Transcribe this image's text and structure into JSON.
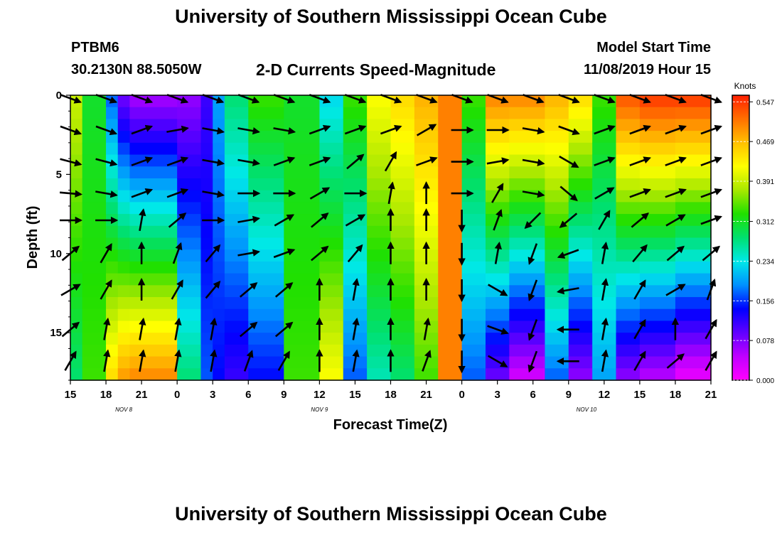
{
  "header": {
    "title": "University of Southern Mississippi Ocean Cube",
    "station_id": "PTBM6",
    "station_coords": "30.2130N 88.5050W",
    "subtitle": "2-D Currents Speed-Magnitude",
    "model_start_label": "Model Start Time",
    "model_start_value": "11/08/2019 Hour 15"
  },
  "footer": {
    "title": "University of Southern Mississippi Ocean Cube"
  },
  "colors": {
    "scale": [
      "#ff00ff",
      "#c000ff",
      "#6000ff",
      "#0000ff",
      "#0090ff",
      "#00e8e8",
      "#00e070",
      "#20e000",
      "#a8e800",
      "#ffff00",
      "#ffc000",
      "#ff7000",
      "#ff2000"
    ],
    "arrow": "#000000"
  },
  "chart_data": {
    "type": "heatmap",
    "title": "2-D Currents Speed-Magnitude",
    "xlabel": "Forecast Time(Z)",
    "ylabel": "Depth (ft)",
    "xlim": [
      0,
      54
    ],
    "ylim": [
      0,
      18
    ],
    "x_ticks": [
      {
        "x": 0,
        "label": "15"
      },
      {
        "x": 3,
        "label": "18"
      },
      {
        "x": 6,
        "label": "21"
      },
      {
        "x": 9,
        "label": "0"
      },
      {
        "x": 12,
        "label": "3"
      },
      {
        "x": 15,
        "label": "6"
      },
      {
        "x": 18,
        "label": "9"
      },
      {
        "x": 21,
        "label": "12"
      },
      {
        "x": 24,
        "label": "15"
      },
      {
        "x": 27,
        "label": "18"
      },
      {
        "x": 30,
        "label": "21"
      },
      {
        "x": 33,
        "label": "0"
      },
      {
        "x": 36,
        "label": "3"
      },
      {
        "x": 39,
        "label": "6"
      },
      {
        "x": 42,
        "label": "9"
      },
      {
        "x": 45,
        "label": "12"
      },
      {
        "x": 48,
        "label": "15"
      },
      {
        "x": 51,
        "label": "18"
      },
      {
        "x": 54,
        "label": "21"
      }
    ],
    "date_labels": [
      {
        "x": 4.5,
        "label": "NOV 8"
      },
      {
        "x": 21,
        "label": "NOV 9"
      },
      {
        "x": 43.5,
        "label": "NOV 10"
      }
    ],
    "y_ticks": [
      {
        "y": 0,
        "label": "0"
      },
      {
        "y": 5,
        "label": "5"
      },
      {
        "y": 10,
        "label": "10"
      },
      {
        "y": 15,
        "label": "15"
      }
    ],
    "colorbar": {
      "title": "Knots",
      "min": 0.0,
      "max": 0.56,
      "tick_labels": [
        "0.000",
        "0.078",
        "0.156",
        "0.234",
        "0.312",
        "0.391",
        "0.469",
        "0.547"
      ]
    },
    "arrow_times": [
      0,
      3,
      6,
      9,
      12,
      15,
      18,
      21,
      24,
      27,
      30,
      33,
      36,
      39,
      42,
      45,
      48,
      51,
      54
    ],
    "arrow_depths": [
      0.2,
      2.2,
      4.2,
      6.2,
      7.9,
      10,
      12.3,
      14.8,
      16.8
    ],
    "arrow_directions_deg": [
      [
        20,
        20,
        20,
        20,
        20,
        20,
        20,
        20,
        20,
        20,
        20,
        20,
        20,
        20,
        20,
        20,
        20,
        20,
        20
      ],
      [
        20,
        20,
        -20,
        -10,
        10,
        10,
        10,
        -20,
        -20,
        -20,
        -30,
        0,
        0,
        10,
        20,
        -20,
        -20,
        -20,
        -20
      ],
      [
        15,
        15,
        -20,
        -20,
        10,
        10,
        -20,
        -20,
        -40,
        -60,
        -20,
        0,
        -10,
        10,
        30,
        -20,
        -20,
        -20,
        -20
      ],
      [
        5,
        10,
        -20,
        -20,
        10,
        0,
        0,
        -30,
        0,
        -80,
        -90,
        0,
        -60,
        10,
        40,
        -30,
        -20,
        -20,
        -20
      ],
      [
        0,
        0,
        -80,
        -40,
        0,
        -10,
        -30,
        -40,
        -30,
        -90,
        -90,
        90,
        -70,
        135,
        140,
        -60,
        -40,
        -30,
        -20
      ],
      [
        -40,
        -60,
        -90,
        -70,
        -50,
        -10,
        -20,
        -40,
        -50,
        -90,
        -90,
        90,
        -80,
        110,
        160,
        -80,
        -50,
        -40,
        -40
      ],
      [
        -30,
        -60,
        -90,
        -60,
        -50,
        -40,
        -40,
        -90,
        -80,
        -90,
        -90,
        90,
        30,
        110,
        170,
        -80,
        -60,
        -30,
        -70
      ],
      [
        -40,
        -80,
        -80,
        -80,
        -80,
        -40,
        -40,
        -90,
        -80,
        -90,
        -80,
        90,
        20,
        110,
        180,
        -80,
        -60,
        -90,
        -60
      ],
      [
        -60,
        -80,
        -80,
        -80,
        -80,
        -70,
        -60,
        -90,
        -80,
        -90,
        -70,
        90,
        30,
        110,
        180,
        -80,
        -60,
        -40,
        -60
      ]
    ],
    "bands": [
      {
        "x0": 0,
        "x1": 1,
        "top": 0.7,
        "bottom": 0.5
      },
      {
        "x0": 1,
        "x1": 3,
        "top": 0.55,
        "bottom": 0.6
      },
      {
        "x0": 3,
        "x1": 4,
        "top": 0.3,
        "bottom": 0.8
      },
      {
        "x0": 4,
        "x1": 5,
        "top": 0.15,
        "bottom": 0.88
      },
      {
        "x0": 5,
        "x1": 9,
        "top": 0.1,
        "bottom": 0.9
      },
      {
        "x0": 9,
        "x1": 11,
        "top": 0.12,
        "bottom": 0.5
      },
      {
        "x0": 11,
        "x1": 12,
        "top": 0.2,
        "bottom": 0.3
      },
      {
        "x0": 12,
        "x1": 13,
        "top": 0.35,
        "bottom": 0.25
      },
      {
        "x0": 13,
        "x1": 15,
        "top": 0.5,
        "bottom": 0.2
      },
      {
        "x0": 15,
        "x1": 18,
        "top": 0.6,
        "bottom": 0.25
      },
      {
        "x0": 18,
        "x1": 21,
        "top": 0.55,
        "bottom": 0.6
      },
      {
        "x0": 21,
        "x1": 23,
        "top": 0.4,
        "bottom": 0.75
      },
      {
        "x0": 23,
        "x1": 25,
        "top": 0.6,
        "bottom": 0.3
      },
      {
        "x0": 25,
        "x1": 27,
        "top": 0.75,
        "bottom": 0.45
      },
      {
        "x0": 27,
        "x1": 29,
        "top": 0.8,
        "bottom": 0.5
      },
      {
        "x0": 29,
        "x1": 31,
        "top": 0.85,
        "bottom": 0.6
      },
      {
        "x0": 31,
        "x1": 33,
        "top": 0.9,
        "bottom": 0.9
      },
      {
        "x0": 33,
        "x1": 35,
        "top": 0.6,
        "bottom": 0.3
      },
      {
        "x0": 35,
        "x1": 37,
        "top": 0.9,
        "bottom": 0.15
      },
      {
        "x0": 37,
        "x1": 40,
        "top": 0.9,
        "bottom": 0.05
      },
      {
        "x0": 40,
        "x1": 42,
        "top": 0.85,
        "bottom": 0.3
      },
      {
        "x0": 42,
        "x1": 44,
        "top": 0.8,
        "bottom": 0.12
      },
      {
        "x0": 44,
        "x1": 46,
        "top": 0.6,
        "bottom": 0.35
      },
      {
        "x0": 46,
        "x1": 48,
        "top": 0.95,
        "bottom": 0.12
      },
      {
        "x0": 48,
        "x1": 51,
        "top": 0.98,
        "bottom": 0.08
      },
      {
        "x0": 51,
        "x1": 54,
        "top": 0.98,
        "bottom": 0.02
      }
    ]
  }
}
